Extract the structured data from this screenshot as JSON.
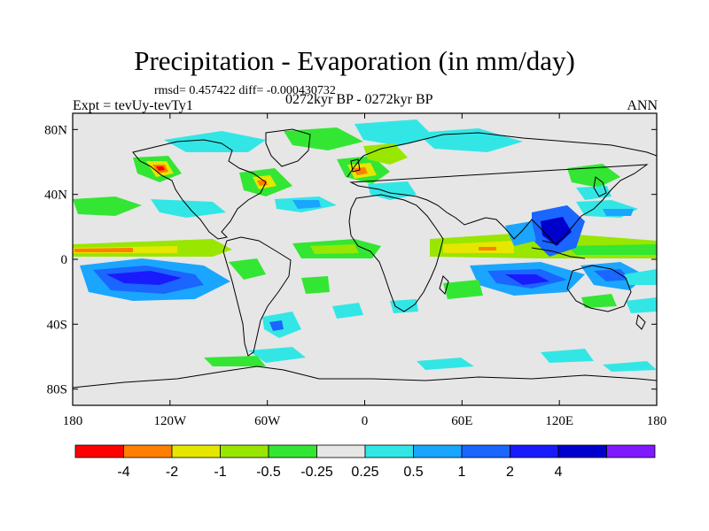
{
  "title": "Precipitation - Evaporation (in mm/day)",
  "stats": "rmsd= 0.457422 diff= -0.000430732",
  "experiment": "Expt = tevUy-tevTy1",
  "period": "0272kyr BP - 0272kyr BP",
  "season": "ANN",
  "map": {
    "projection": "cylindrical-equidistant",
    "lon_range": [
      -180,
      180
    ],
    "lat_range": [
      -90,
      90
    ],
    "background_color": "#e6e6e6",
    "lat_ticks": [
      {
        "value": 80,
        "label": "80N"
      },
      {
        "value": 40,
        "label": "40N"
      },
      {
        "value": 0,
        "label": "0"
      },
      {
        "value": -40,
        "label": "40S"
      },
      {
        "value": -80,
        "label": "80S"
      }
    ],
    "lon_ticks": [
      {
        "value": -180,
        "label": "180"
      },
      {
        "value": -120,
        "label": "120W"
      },
      {
        "value": -60,
        "label": "60W"
      },
      {
        "value": 0,
        "label": "0"
      },
      {
        "value": 60,
        "label": "60E"
      },
      {
        "value": 120,
        "label": "120E"
      },
      {
        "value": 180,
        "label": "180"
      }
    ]
  },
  "colorbar": {
    "colors": [
      "#ff0000",
      "#ff8000",
      "#e6e600",
      "#99e600",
      "#33e633",
      "#e6e6e6",
      "#33e6e6",
      "#1aa6ff",
      "#1a66ff",
      "#1a1aff",
      "#0000cc",
      "#7f1aff"
    ],
    "labels": [
      "-4",
      "-2",
      "-1",
      "-0.5",
      "-0.25",
      "0.25",
      "0.5",
      "1",
      "2",
      "4"
    ]
  }
}
